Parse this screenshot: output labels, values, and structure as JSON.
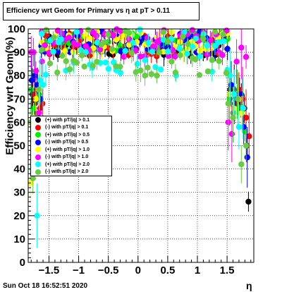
{
  "title": "Efficiency wrt Geom for Primary vs   η at pT > 0.11",
  "footer": "Sun Oct 18 16:52:51 2020",
  "chart_data": {
    "type": "scatter",
    "title": "Efficiency wrt Geom for Primary vs   η at pT > 0.11",
    "xlabel": "η",
    "ylabel": "Efficiency wrt Geom(%)",
    "xlim": [
      -1.85,
      1.95
    ],
    "ylim": [
      0,
      100
    ],
    "x_ticks": [
      {
        "v": -1.5,
        "label": "−1.5"
      },
      {
        "v": -1,
        "label": "−1"
      },
      {
        "v": -0.5,
        "label": "−0.5"
      },
      {
        "v": 0,
        "label": "0"
      },
      {
        "v": 0.5,
        "label": "0.5"
      },
      {
        "v": 1,
        "label": "1"
      },
      {
        "v": 1.5,
        "label": "1.5"
      }
    ],
    "y_ticks": [
      {
        "v": 0,
        "label": "0"
      },
      {
        "v": 10,
        "label": "10"
      },
      {
        "v": 20,
        "label": "20"
      },
      {
        "v": 30,
        "label": "30"
      },
      {
        "v": 40,
        "label": "40"
      },
      {
        "v": 50,
        "label": "50"
      },
      {
        "v": 60,
        "label": "60"
      },
      {
        "v": 70,
        "label": "70"
      },
      {
        "v": 80,
        "label": "80"
      },
      {
        "v": 90,
        "label": "90"
      },
      {
        "v": 100,
        "label": "100"
      }
    ],
    "grid": true,
    "legend_position": "middle-left",
    "series": [
      {
        "name": "(+) with pT/|q| > 0.1",
        "color": "#000000",
        "edge_points": [
          [
            -1.78,
            72
          ],
          [
            -1.74,
            68
          ],
          [
            -1.7,
            74
          ],
          [
            -1.66,
            70
          ],
          [
            1.55,
            74
          ],
          [
            1.62,
            72
          ],
          [
            1.68,
            68
          ],
          [
            1.74,
            72
          ],
          [
            1.79,
            66
          ],
          [
            1.83,
            50
          ],
          [
            1.86,
            26
          ]
        ],
        "band": [
          88,
          98
        ]
      },
      {
        "name": "(-) with pT/|q| > 0.1",
        "color": "#ff0000",
        "edge_points": [
          [
            -1.77,
            72
          ],
          [
            -1.73,
            70
          ],
          [
            -1.69,
            76
          ],
          [
            -1.65,
            66
          ],
          [
            -1.61,
            68
          ],
          [
            1.56,
            72
          ],
          [
            1.63,
            68
          ],
          [
            1.7,
            74
          ],
          [
            1.76,
            70
          ],
          [
            1.82,
            62
          ],
          [
            1.87,
            54
          ]
        ],
        "band": [
          88,
          98
        ]
      },
      {
        "name": "(+) with pT/|q| > 0.5",
        "color": "#00ee00",
        "edge_points": [
          [
            -1.8,
            74
          ],
          [
            -1.75,
            66
          ],
          [
            -1.71,
            60
          ],
          [
            -1.67,
            72
          ],
          [
            1.54,
            70
          ],
          [
            1.6,
            64
          ],
          [
            1.67,
            72
          ],
          [
            1.73,
            66
          ],
          [
            1.8,
            56
          ]
        ],
        "band": [
          90,
          99
        ]
      },
      {
        "name": "(-) with pT/|q| > 0.5",
        "color": "#0000ff",
        "edge_points": [
          [
            -1.79,
            78
          ],
          [
            -1.74,
            80
          ],
          [
            -1.7,
            76
          ],
          [
            -1.64,
            70
          ],
          [
            1.57,
            76
          ],
          [
            1.64,
            70
          ],
          [
            1.71,
            72
          ],
          [
            1.78,
            58
          ],
          [
            1.84,
            45
          ]
        ],
        "band": [
          90,
          99
        ]
      },
      {
        "name": "(+) with pT/|q| > 1.0",
        "color": "#ffff00",
        "edge_points": [
          [
            -1.81,
            34
          ],
          [
            -1.76,
            62
          ],
          [
            -1.72,
            70
          ],
          [
            -1.66,
            74
          ],
          [
            1.55,
            72
          ],
          [
            1.61,
            66
          ],
          [
            1.69,
            70
          ],
          [
            1.75,
            64
          ]
        ],
        "band": [
          89,
          99
        ]
      },
      {
        "name": "(-) with pT/|q| > 1.0",
        "color": "#ff00ff",
        "edge_points": [
          [
            -1.8,
            90
          ],
          [
            -1.76,
            90
          ],
          [
            -1.72,
            82
          ],
          [
            -1.67,
            64
          ],
          [
            -1.62,
            86
          ],
          [
            1.52,
            60
          ],
          [
            1.58,
            55
          ],
          [
            1.66,
            86
          ],
          [
            1.74,
            92
          ],
          [
            1.82,
            88
          ]
        ],
        "band": [
          88,
          100
        ]
      },
      {
        "name": "(+) with pT/|q| > 2.0",
        "color": "#00ffff",
        "edge_points": [
          [
            -1.78,
            40
          ],
          [
            -1.74,
            48
          ],
          [
            -1.7,
            20
          ],
          [
            -1.65,
            78
          ],
          [
            -1.6,
            76
          ],
          [
            1.55,
            80
          ],
          [
            1.62,
            72
          ],
          [
            1.7,
            58
          ],
          [
            1.77,
            66
          ]
        ],
        "band": [
          80,
          100
        ]
      },
      {
        "name": "(-) with pT/|q| > 2.0",
        "color": "#66cc44",
        "edge_points": [
          [
            -1.81,
            60
          ],
          [
            -1.77,
            36
          ],
          [
            -1.72,
            58
          ],
          [
            -1.67,
            74
          ],
          [
            1.52,
            68
          ],
          [
            1.6,
            62
          ],
          [
            1.68,
            70
          ],
          [
            1.74,
            42
          ],
          [
            1.82,
            50
          ]
        ],
        "band": [
          80,
          100
        ]
      }
    ]
  }
}
